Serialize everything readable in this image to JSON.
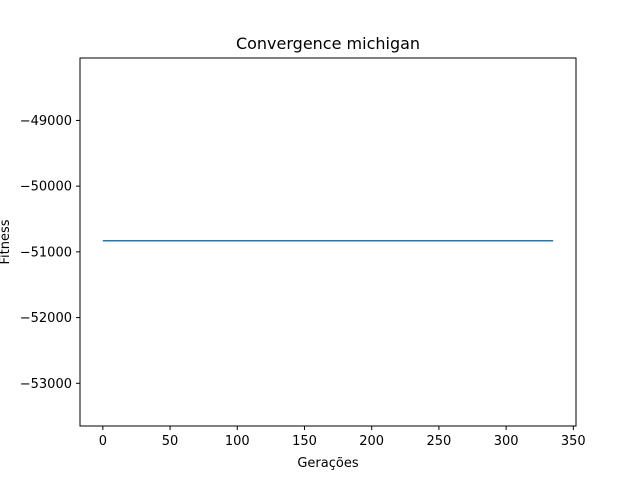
{
  "chart_data": {
    "type": "line",
    "title": "Convergence michigan",
    "xlabel": "Gerações",
    "ylabel": "Fitness",
    "xlim": [
      -17,
      352
    ],
    "ylim": [
      -53650,
      -48050
    ],
    "xticks": [
      0,
      50,
      100,
      150,
      200,
      250,
      300,
      350
    ],
    "yticks": [
      -53000,
      -52000,
      -51000,
      -50000,
      -49000
    ],
    "ytick_labels": [
      "−53000",
      "−52000",
      "−51000",
      "−50000",
      "−49000"
    ],
    "grid": false,
    "series": [
      {
        "x": [
          0,
          335
        ],
        "y": [
          -50830,
          -50830
        ],
        "color": "#1f77b4"
      }
    ]
  }
}
